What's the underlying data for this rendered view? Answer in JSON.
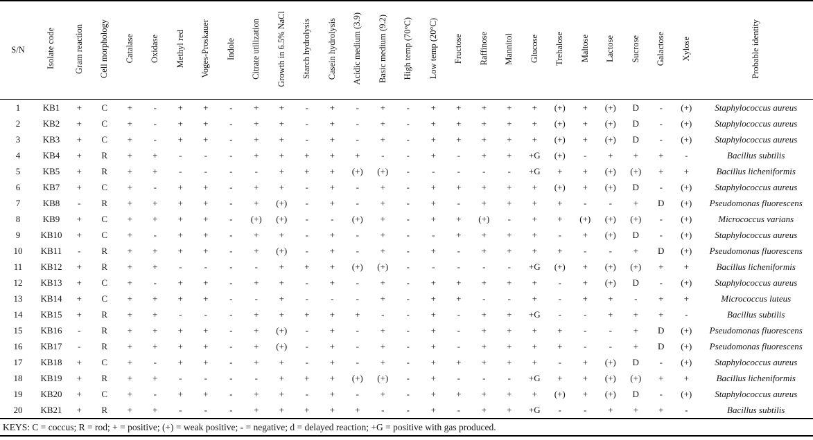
{
  "table": {
    "columns": [
      "S/N",
      "Isolate code",
      "Gram reaction",
      "Cell morphology",
      "Catalase",
      "Oxidase",
      "Methyl red",
      "Voges-Proskauer",
      "Indole",
      "Citrate utilization",
      "Growth in 6.5% NaCl",
      "Starch hydrolysis",
      "Casein hydrolysis",
      "Acidic medium (3.9)",
      "Basic medium (9.2)",
      "High temp (70°C)",
      "Low temp (20°C)",
      "Fructose",
      "Raffinose",
      "Mannitol",
      "Glucose",
      "Trehalose",
      "Maltose",
      "Lactose",
      "Sucrose",
      "Galactose",
      "Xylose",
      "Probable identity"
    ],
    "rows": [
      [
        "1",
        "KB1",
        "+",
        "C",
        "+",
        "-",
        "+",
        "+",
        "-",
        "+",
        "+",
        "-",
        "+",
        "-",
        "+",
        "-",
        "+",
        "+",
        "+",
        "+",
        "+",
        "(+)",
        "+",
        "(+)",
        "D",
        "-",
        "(+)",
        "Staphylococcus aureus"
      ],
      [
        "2",
        "KB2",
        "+",
        "C",
        "+",
        "-",
        "+",
        "+",
        "-",
        "+",
        "+",
        "-",
        "+",
        "-",
        "+",
        "-",
        "+",
        "+",
        "+",
        "+",
        "+",
        "(+)",
        "+",
        "(+)",
        "D",
        "-",
        "(+)",
        "Staphylococcus aureus"
      ],
      [
        "3",
        "KB3",
        "+",
        "C",
        "+",
        "-",
        "+",
        "+",
        "-",
        "+",
        "+",
        "-",
        "+",
        "-",
        "+",
        "-",
        "+",
        "+",
        "+",
        "+",
        "+",
        "(+)",
        "+",
        "(+)",
        "D",
        "-",
        "(+)",
        "Staphylococcus aureus"
      ],
      [
        "4",
        "KB4",
        "+",
        "R",
        "+",
        "+",
        "-",
        "-",
        "-",
        "+",
        "+",
        "+",
        "+",
        "+",
        "-",
        "-",
        "+",
        "-",
        "+",
        "+",
        "+G",
        "(+)",
        "-",
        "+",
        "+",
        "+",
        "-",
        "Bacillus subtilis"
      ],
      [
        "5",
        "KB5",
        "+",
        "R",
        "+",
        "+",
        "-",
        "-",
        "-",
        "-",
        "+",
        "+",
        "+",
        "(+)",
        "(+)",
        "-",
        "-",
        "-",
        "-",
        "-",
        "+G",
        "+",
        "+",
        "(+)",
        "(+)",
        "+",
        "+",
        "Bacillus licheniformis"
      ],
      [
        "6",
        "KB7",
        "+",
        "C",
        "+",
        "-",
        "+",
        "+",
        "-",
        "+",
        "+",
        "-",
        "+",
        "-",
        "+",
        "-",
        "+",
        "+",
        "+",
        "+",
        "+",
        "(+)",
        "+",
        "(+)",
        "D",
        "-",
        "(+)",
        "Staphylococcus aureus"
      ],
      [
        "7",
        "KB8",
        "-",
        "R",
        "+",
        "+",
        "+",
        "+",
        "-",
        "+",
        "(+)",
        "-",
        "+",
        "-",
        "+",
        "-",
        "+",
        "-",
        "+",
        "+",
        "+",
        "+",
        "-",
        "-",
        "+",
        "D",
        "(+)",
        "Pseudomonas fluorescens"
      ],
      [
        "8",
        "KB9",
        "+",
        "C",
        "+",
        "+",
        "+",
        "+",
        "-",
        "(+)",
        "(+)",
        "-",
        "-",
        "(+)",
        "+",
        "-",
        "+",
        "+",
        "(+)",
        "-",
        "+",
        "+",
        "(+)",
        "(+)",
        "(+)",
        "-",
        "(+)",
        "Micrococcus varians"
      ],
      [
        "9",
        "KB10",
        "+",
        "C",
        "+",
        "-",
        "+",
        "+",
        "-",
        "+",
        "+",
        "-",
        "+",
        "-",
        "+",
        "-",
        "-",
        "+",
        "+",
        "+",
        "+",
        "-",
        "+",
        "(+)",
        "D",
        "-",
        "(+)",
        "Staphylococcus aureus"
      ],
      [
        "10",
        "KB11",
        "-",
        "R",
        "+",
        "+",
        "+",
        "+",
        "-",
        "+",
        "(+)",
        "-",
        "+",
        "-",
        "+",
        "-",
        "+",
        "-",
        "+",
        "+",
        "+",
        "+",
        "-",
        "-",
        "+",
        "D",
        "(+)",
        "Pseudomonas fluorescens"
      ],
      [
        "11",
        "KB12",
        "+",
        "R",
        "+",
        "+",
        "-",
        "-",
        "-",
        "-",
        "+",
        "+",
        "+",
        "(+)",
        "(+)",
        "-",
        "-",
        "-",
        "-",
        "-",
        "+G",
        "(+)",
        "+",
        "(+)",
        "(+)",
        "+",
        "+",
        "Bacillus licheniformis"
      ],
      [
        "12",
        "KB13",
        "+",
        "C",
        "+",
        "-",
        "+",
        "+",
        "-",
        "+",
        "+",
        "-",
        "+",
        "-",
        "+",
        "-",
        "+",
        "+",
        "+",
        "+",
        "+",
        "-",
        "+",
        "(+)",
        "D",
        "-",
        "(+)",
        "Staphylococcus aureus"
      ],
      [
        "13",
        "KB14",
        "+",
        "C",
        "+",
        "+",
        "+",
        "+",
        "-",
        "-",
        "+",
        "-",
        "-",
        "-",
        "+",
        "-",
        "+",
        "+",
        "-",
        "-",
        "+",
        "-",
        "+",
        "+",
        "-",
        "+",
        "+",
        "Micrococcus luteus"
      ],
      [
        "14",
        "KB15",
        "+",
        "R",
        "+",
        "+",
        "-",
        "-",
        "-",
        "+",
        "+",
        "+",
        "+",
        "+",
        "-",
        "-",
        "+",
        "-",
        "+",
        "+",
        "+G",
        "-",
        "-",
        "+",
        "+",
        "+",
        "-",
        "Bacillus subtilis"
      ],
      [
        "15",
        "KB16",
        "-",
        "R",
        "+",
        "+",
        "+",
        "+",
        "-",
        "+",
        "(+)",
        "-",
        "+",
        "-",
        "+",
        "-",
        "+",
        "-",
        "+",
        "+",
        "+",
        "+",
        "-",
        "-",
        "+",
        "D",
        "(+)",
        "Pseudomonas fluorescens"
      ],
      [
        "16",
        "KB17",
        "-",
        "R",
        "+",
        "+",
        "+",
        "+",
        "-",
        "+",
        "(+)",
        "-",
        "+",
        "-",
        "+",
        "-",
        "+",
        "-",
        "+",
        "+",
        "+",
        "+",
        "-",
        "-",
        "+",
        "D",
        "(+)",
        "Pseudomonas fluorescens"
      ],
      [
        "17",
        "KB18",
        "+",
        "C",
        "+",
        "-",
        "+",
        "+",
        "-",
        "+",
        "+",
        "-",
        "+",
        "-",
        "+",
        "-",
        "+",
        "+",
        "+",
        "+",
        "+",
        "-",
        "+",
        "(+)",
        "D",
        "-",
        "(+)",
        "Staphylococcus aureus"
      ],
      [
        "18",
        "KB19",
        "+",
        "R",
        "+",
        "+",
        "-",
        "-",
        "-",
        "-",
        "+",
        "+",
        "+",
        "(+)",
        "(+)",
        "-",
        "+",
        "-",
        "-",
        "-",
        "+G",
        "+",
        "+",
        "(+)",
        "(+)",
        "+",
        "+",
        "Bacillus licheniformis"
      ],
      [
        "19",
        "KB20",
        "+",
        "C",
        "+",
        "-",
        "+",
        "+",
        "-",
        "+",
        "+",
        "-",
        "+",
        "-",
        "+",
        "-",
        "+",
        "+",
        "+",
        "+",
        "+",
        "(+)",
        "+",
        "(+)",
        "D",
        "-",
        "(+)",
        "Staphylococcus aureus"
      ],
      [
        "20",
        "KB21",
        "+",
        "R",
        "+",
        "+",
        "-",
        "-",
        "-",
        "+",
        "+",
        "+",
        "+",
        "+",
        "-",
        "-",
        "+",
        "-",
        "+",
        "+",
        "+G",
        "-",
        "-",
        "+",
        "+",
        "+",
        "-",
        "Bacillus subtilis"
      ]
    ],
    "footer": "KEYS: C = coccus; R = rod; + = positive; (+) = weak positive; - = negative; d = delayed reaction; +G = positive with gas produced."
  },
  "text_color": "#141414",
  "background_color": "#ffffff"
}
